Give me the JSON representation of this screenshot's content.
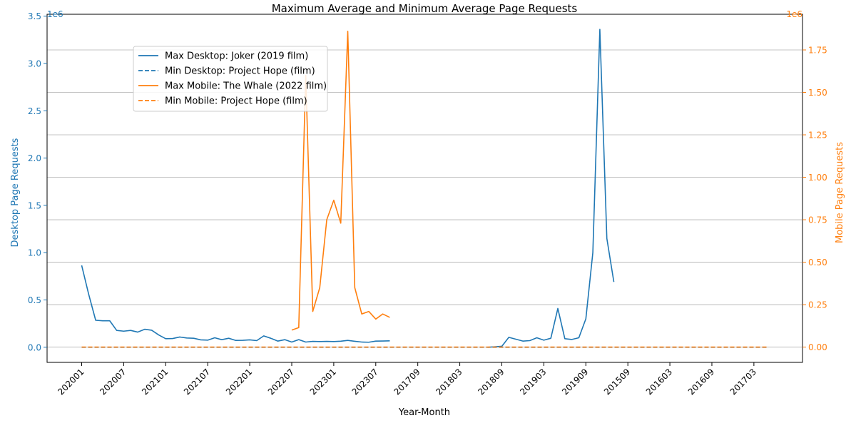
{
  "chart_data": {
    "type": "line",
    "title": "Maximum Average and Minimum Average Page Requests",
    "xlabel": "Year-Month",
    "ylabel_left": "Desktop Page Requests",
    "ylabel_right": "Mobile Page Requests",
    "left_exponent": "1e6",
    "right_exponent": "1e6",
    "x_categories": [
      "202001",
      "202002",
      "202003",
      "202004",
      "202005",
      "202006",
      "202007",
      "202008",
      "202009",
      "202010",
      "202011",
      "202012",
      "202101",
      "202102",
      "202103",
      "202104",
      "202105",
      "202106",
      "202107",
      "202108",
      "202109",
      "202110",
      "202111",
      "202112",
      "202201",
      "202202",
      "202203",
      "202204",
      "202205",
      "202206",
      "202207",
      "202208",
      "202209",
      "202210",
      "202211",
      "202212",
      "202301",
      "202302",
      "202303",
      "202304",
      "202305",
      "202306",
      "202307",
      "202308",
      "202309",
      "201706",
      "201707",
      "201708",
      "201709",
      "201710",
      "201711",
      "201712",
      "201801",
      "201802",
      "201803",
      "201804",
      "201805",
      "201806",
      "201807",
      "201808",
      "201809",
      "201810",
      "201811",
      "201812",
      "201901",
      "201902",
      "201903",
      "201904",
      "201905",
      "201906",
      "201907",
      "201908",
      "201909",
      "201910",
      "201911",
      "201912",
      "201507",
      "201508",
      "201509",
      "201510",
      "201511",
      "201512",
      "201601",
      "201602",
      "201603",
      "201604",
      "201605",
      "201606",
      "201607",
      "201608",
      "201609",
      "201610",
      "201611",
      "201612",
      "201701",
      "201702",
      "201703",
      "201704",
      "201705"
    ],
    "x_tick_labels": [
      "202001",
      "202007",
      "202101",
      "202107",
      "202201",
      "202207",
      "202301",
      "202307",
      "201709",
      "201803",
      "201809",
      "201903",
      "201909",
      "201509",
      "201603",
      "201609",
      "201703"
    ],
    "left_axis": {
      "ylim": [
        -0.16,
        3.52
      ],
      "ticks": [
        0.0,
        0.5,
        1.0,
        1.5,
        2.0,
        2.5,
        3.0,
        3.5
      ],
      "tick_labels": [
        "0.0",
        "0.5",
        "1.0",
        "1.5",
        "2.0",
        "2.5",
        "3.0",
        "3.5"
      ],
      "color": "#1f77b4"
    },
    "right_axis": {
      "ylim": [
        -0.09,
        1.96
      ],
      "ticks": [
        0.0,
        0.25,
        0.5,
        0.75,
        1.0,
        1.25,
        1.5,
        1.75
      ],
      "tick_labels": [
        "0.00",
        "0.25",
        "0.50",
        "0.75",
        "1.00",
        "1.25",
        "1.50",
        "1.75"
      ],
      "color": "#ff7f0e"
    },
    "grid": "horizontal lines at right-axis ticks",
    "legend_position": "upper-left",
    "series": [
      {
        "name": "Max Desktop: Joker (2019 film)",
        "axis": "left",
        "color": "#1f77b4",
        "style": "solid",
        "start_index": 0,
        "values": [
          0.865,
          0.56,
          0.285,
          0.28,
          0.28,
          0.178,
          0.17,
          0.178,
          0.16,
          0.19,
          0.18,
          0.13,
          0.09,
          0.092,
          0.108,
          0.098,
          0.095,
          0.078,
          0.075,
          0.1,
          0.08,
          0.095,
          0.072,
          0.073,
          0.078,
          0.07,
          0.12,
          0.095,
          0.065,
          0.08,
          0.055,
          0.08,
          0.055,
          0.062,
          0.06,
          0.062,
          0.06,
          0.064,
          0.072,
          0.063,
          0.055,
          0.053,
          0.065,
          0.066,
          0.068
        ]
      },
      {
        "name": "Max Desktop: Joker (2019 film)",
        "axis": "left",
        "color": "#1f77b4",
        "style": "solid",
        "start_index": 58,
        "values": [
          0.0,
          0.005,
          0.01,
          0.105,
          0.085,
          0.065,
          0.07,
          0.1,
          0.075,
          0.095,
          0.41,
          0.09,
          0.082,
          0.1,
          0.3,
          1.0,
          3.36,
          1.15,
          0.69
        ]
      },
      {
        "name": "Min Desktop: Project Hope (film)",
        "axis": "left",
        "color": "#1f77b4",
        "style": "dashed",
        "start_index": 0,
        "values": [
          0,
          0,
          0,
          0,
          0,
          0,
          0,
          0,
          0,
          0,
          0,
          0,
          0,
          0,
          0,
          0,
          0,
          0,
          0,
          0,
          0,
          0,
          0,
          0,
          0,
          0,
          0,
          0,
          0,
          0,
          0,
          0,
          0,
          0,
          0,
          0,
          0,
          0,
          0,
          0,
          0,
          0,
          0,
          0,
          0,
          0,
          0,
          0,
          0,
          0,
          0,
          0,
          0,
          0,
          0,
          0,
          0,
          0,
          0,
          0,
          0,
          0,
          0,
          0,
          0,
          0,
          0,
          0,
          0,
          0,
          0,
          0,
          0,
          0,
          0,
          0,
          0,
          0,
          0,
          0,
          0,
          0,
          0,
          0,
          0,
          0,
          0,
          0,
          0,
          0,
          0,
          0,
          0,
          0,
          0,
          0,
          0,
          0,
          0
        ]
      },
      {
        "name": "Max Mobile: The Whale (2022 film)",
        "axis": "right",
        "color": "#ff7f0e",
        "style": "solid",
        "start_index": 30,
        "values": [
          0.1,
          0.115,
          1.6,
          0.21,
          0.35,
          0.75,
          0.865,
          0.73,
          1.86,
          0.35,
          0.195,
          0.21,
          0.165,
          0.195,
          0.175
        ]
      },
      {
        "name": "Min Mobile: Project Hope (film)",
        "axis": "right",
        "color": "#ff7f0e",
        "style": "dashed",
        "start_index": 0,
        "values": [
          0,
          0,
          0,
          0,
          0,
          0,
          0,
          0,
          0,
          0,
          0,
          0,
          0,
          0,
          0,
          0,
          0,
          0,
          0,
          0,
          0,
          0,
          0,
          0,
          0,
          0,
          0,
          0,
          0,
          0,
          0,
          0,
          0,
          0,
          0,
          0,
          0,
          0,
          0,
          0,
          0,
          0,
          0,
          0,
          0,
          0,
          0,
          0,
          0,
          0,
          0,
          0,
          0,
          0,
          0,
          0,
          0,
          0,
          0,
          0,
          0,
          0,
          0,
          0,
          0,
          0,
          0,
          0,
          0,
          0,
          0,
          0,
          0,
          0,
          0,
          0,
          0,
          0,
          0,
          0,
          0,
          0,
          0,
          0,
          0,
          0,
          0,
          0,
          0,
          0,
          0,
          0,
          0,
          0,
          0,
          0,
          0,
          0,
          0
        ]
      }
    ]
  }
}
